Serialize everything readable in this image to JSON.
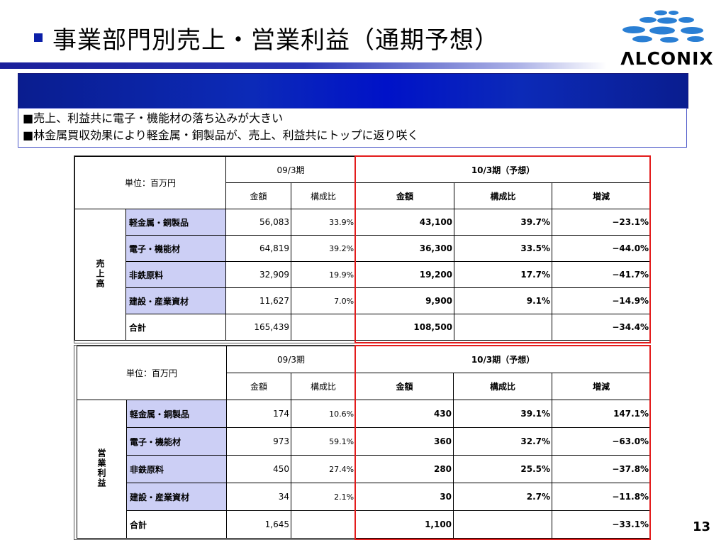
{
  "title": "事業部門別売上・営業利益（通期予想）",
  "logo_text": "ΛLCONIX",
  "notes": [
    "■売上、利益共に電子・機能材の落ち込みが大きい",
    "■林金属買収効果により軽金属・銅製品が、売上、利益共にトップに返り咲く"
  ],
  "page_number": "13",
  "colors": {
    "accent": "#0b1fa8",
    "label_bg": "#cccff5",
    "highlight_border": "#e31c1c"
  },
  "sales_table": {
    "unit": "単位：百万円",
    "period_prev": "09/3期",
    "period_forecast": "10/3期（予想）",
    "col_amount": "金額",
    "col_ratio": "構成比",
    "col_change": "増減",
    "row_group": "売上高",
    "rows": [
      {
        "label": "軽金属・銅製品",
        "prev_amount": "56,083",
        "prev_ratio": "33.9%",
        "fc_amount": "43,100",
        "fc_ratio": "39.7%",
        "change": "−23.1%"
      },
      {
        "label": "電子・機能材",
        "prev_amount": "64,819",
        "prev_ratio": "39.2%",
        "fc_amount": "36,300",
        "fc_ratio": "33.5%",
        "change": "−44.0%"
      },
      {
        "label": "非鉄原料",
        "prev_amount": "32,909",
        "prev_ratio": "19.9%",
        "fc_amount": "19,200",
        "fc_ratio": "17.7%",
        "change": "−41.7%"
      },
      {
        "label": "建設・産業資材",
        "prev_amount": "11,627",
        "prev_ratio": "7.0%",
        "fc_amount": "9,900",
        "fc_ratio": "9.1%",
        "change": "−14.9%"
      },
      {
        "label": "合計",
        "prev_amount": "165,439",
        "prev_ratio": "",
        "fc_amount": "108,500",
        "fc_ratio": "",
        "change": "−34.4%"
      }
    ]
  },
  "profit_table": {
    "unit": "単位：百万円",
    "period_prev": "09/3期",
    "period_forecast": "10/3期（予想）",
    "col_amount": "金額",
    "col_ratio": "構成比",
    "col_change": "増減",
    "row_group": "営業利益",
    "rows": [
      {
        "label": "軽金属・銅製品",
        "prev_amount": "174",
        "prev_ratio": "10.6%",
        "fc_amount": "430",
        "fc_ratio": "39.1%",
        "change": "147.1%"
      },
      {
        "label": "電子・機能材",
        "prev_amount": "973",
        "prev_ratio": "59.1%",
        "fc_amount": "360",
        "fc_ratio": "32.7%",
        "change": "−63.0%"
      },
      {
        "label": "非鉄原料",
        "prev_amount": "450",
        "prev_ratio": "27.4%",
        "fc_amount": "280",
        "fc_ratio": "25.5%",
        "change": "−37.8%"
      },
      {
        "label": "建設・産業資材",
        "prev_amount": "34",
        "prev_ratio": "2.1%",
        "fc_amount": "30",
        "fc_ratio": "2.7%",
        "change": "−11.8%"
      },
      {
        "label": "合計",
        "prev_amount": "1,645",
        "prev_ratio": "",
        "fc_amount": "1,100",
        "fc_ratio": "",
        "change": "−33.1%"
      }
    ]
  }
}
